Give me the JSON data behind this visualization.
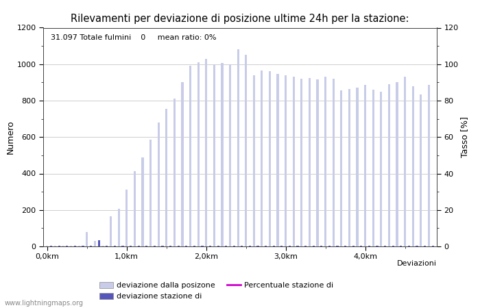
{
  "title": "Rilevamenti per deviazione di posizione ultime 24h per la stazione:",
  "subtitle": "31.097 Totale fulmini    0     mean ratio: 0%",
  "xlabel": "Deviazioni",
  "ylabel_left": "Numero",
  "ylabel_right": "Tasso [%]",
  "bar_color_light": "#c8cce8",
  "bar_color_dark": "#5555bb",
  "line_color": "#cc00cc",
  "ylim_left": [
    0,
    1200
  ],
  "ylim_right": [
    0,
    120
  ],
  "yticks_left": [
    0,
    200,
    400,
    600,
    800,
    1000,
    1200
  ],
  "yticks_right": [
    0,
    20,
    40,
    60,
    80,
    100,
    120
  ],
  "xtick_labels": [
    "0,0km",
    "1,0km",
    "2,0km",
    "3,0km",
    "4,0km"
  ],
  "legend_labels": [
    "deviazione dalla posizone",
    "deviazione stazione di",
    "Percentuale stazione di"
  ],
  "watermark": "www.lightningmaps.org",
  "light_bars": [
    5,
    2,
    2,
    2,
    2,
    2,
    2,
    2,
    2,
    2,
    80,
    5,
    30,
    35,
    5,
    5,
    165,
    5,
    205,
    5,
    310,
    5,
    415,
    5,
    490,
    5,
    585,
    5,
    680,
    5,
    755,
    5,
    810,
    5,
    900,
    5,
    990,
    5,
    1010,
    5,
    1030,
    5,
    1000,
    5,
    1005,
    5,
    1000,
    5,
    1080,
    5,
    1050,
    5,
    940,
    5,
    965,
    5,
    960,
    5,
    945,
    5,
    940,
    5,
    930,
    5,
    920,
    5,
    925,
    5,
    915,
    5,
    930,
    5,
    920,
    5,
    855,
    5,
    865,
    5,
    870,
    5,
    885,
    5,
    860,
    5,
    850,
    5,
    890,
    5,
    900,
    5,
    930,
    5,
    880,
    5,
    835,
    5,
    885,
    5
  ],
  "dark_bars": [
    0,
    0,
    0,
    0,
    0,
    0,
    0,
    0,
    0,
    0,
    0,
    0,
    0,
    0,
    0,
    0,
    0,
    0,
    0,
    0,
    0,
    0,
    0,
    0,
    0,
    0,
    0,
    0,
    0,
    0,
    0,
    0,
    0,
    0,
    0,
    0,
    0,
    0,
    0,
    0,
    0,
    0,
    0,
    0,
    0,
    0,
    0,
    0,
    0,
    0,
    0,
    0,
    0,
    0,
    0,
    0,
    0,
    0,
    0,
    0,
    0,
    0,
    0,
    0,
    0,
    0,
    0,
    0,
    0,
    0,
    0,
    0,
    0,
    0
  ],
  "bg_color": "#ffffff",
  "grid_color": "#aaaaaa",
  "spine_color": "#444444"
}
